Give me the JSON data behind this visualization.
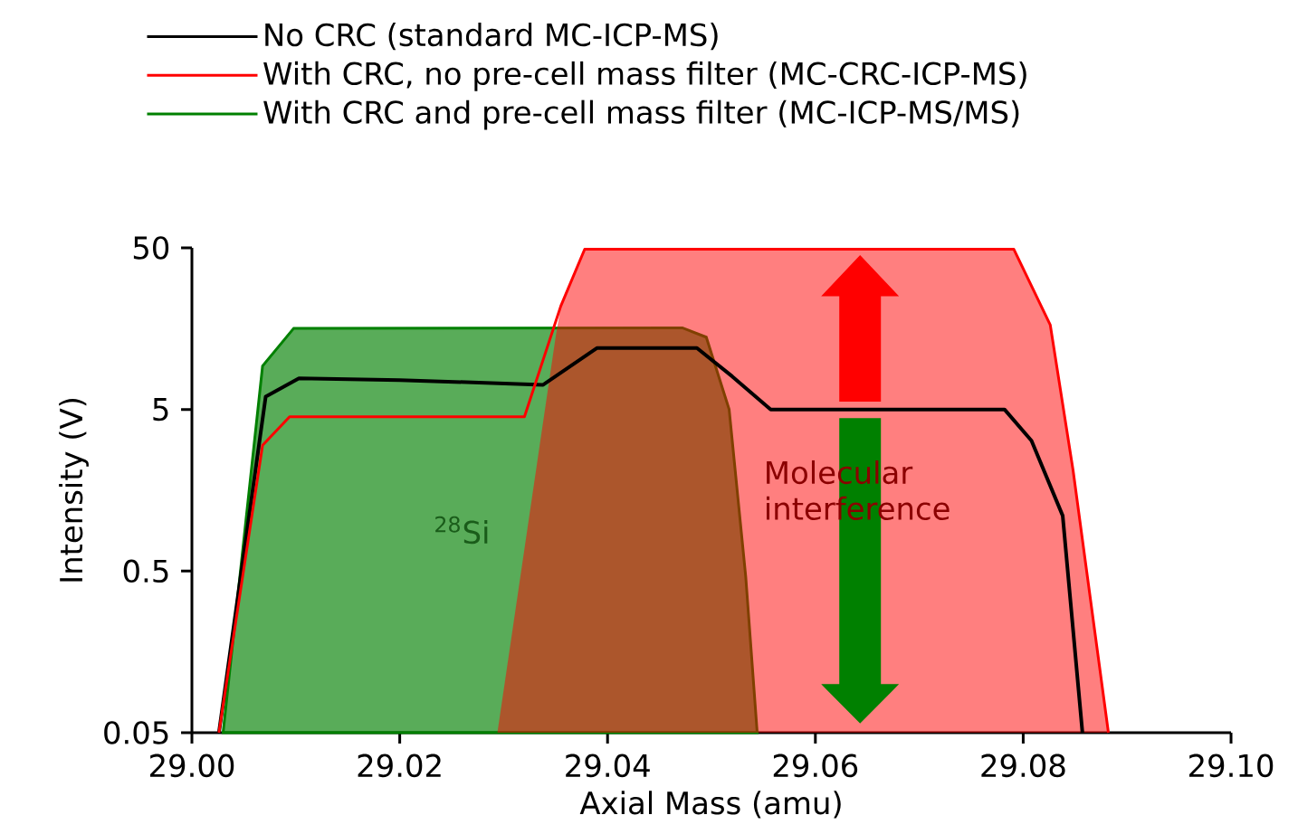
{
  "chart_data": {
    "type": "line",
    "xlabel": "Axial Mass (amu)",
    "ylabel": "Intensity (V)",
    "log": "y",
    "legend": "top",
    "xlim": [
      29.0,
      29.1
    ],
    "ylim": [
      0.05,
      50
    ],
    "xticks": [
      {
        "value": 29.0,
        "label": "29.00"
      },
      {
        "value": 29.02,
        "label": "29.02"
      },
      {
        "value": 29.04,
        "label": "29.04"
      },
      {
        "value": 29.06,
        "label": "29.06"
      },
      {
        "value": 29.08,
        "label": "29.08"
      },
      {
        "value": 29.1,
        "label": "29.10"
      }
    ],
    "yticks": [
      0.05,
      0.5,
      5,
      50
    ],
    "annotations": [
      "$^{28}$Si",
      "Molecular interference"
    ],
    "series": [
      {
        "name": "No CRC (standard MC-ICP-MS)",
        "color": "#000000",
        "x": [
          29.0026,
          29.0071,
          29.0103,
          29.02,
          29.0338,
          29.039,
          29.0486,
          29.052,
          29.0557,
          29.0782,
          29.0808,
          29.0838,
          29.0857
        ],
        "values": [
          0.05,
          6,
          7.8,
          7.6,
          7.1,
          12,
          12,
          8,
          5,
          5,
          3.2,
          1.1,
          0.05
        ]
      },
      {
        "name": "With CRC, no pre-cell mass filter (MC-CRC-ICP-MS)",
        "color": "#ff0000",
        "x": [
          29.0026,
          29.0068,
          29.0094,
          29.032,
          29.0355,
          29.0378,
          29.0791,
          29.0826,
          29.0848,
          29.0882
        ],
        "values": [
          0.05,
          3,
          4.5,
          4.5,
          21.8,
          49,
          49,
          16.7,
          2.1,
          0.05
        ]
      },
      {
        "name": "With CRC and pre-cell mass filter (MC-ICP-MS/MS)",
        "type": "area",
        "color": "#008000",
        "x": [
          29.003,
          29.0068,
          29.0098,
          29.0472,
          29.0495,
          29.0517,
          29.0533,
          29.0544
        ],
        "values": [
          0.05,
          9.3,
          15.9,
          16,
          14,
          5,
          0.46,
          0.05
        ]
      },
      {
        "type": "area",
        "color": "#ff0000",
        "x": [
          29.0294,
          29.035,
          29.0355,
          29.0378,
          29.0791,
          29.0826,
          29.0848,
          29.0882
        ],
        "values": [
          0.05,
          14,
          21.8,
          49,
          49,
          16.7,
          2.1,
          0.05
        ]
      }
    ]
  }
}
